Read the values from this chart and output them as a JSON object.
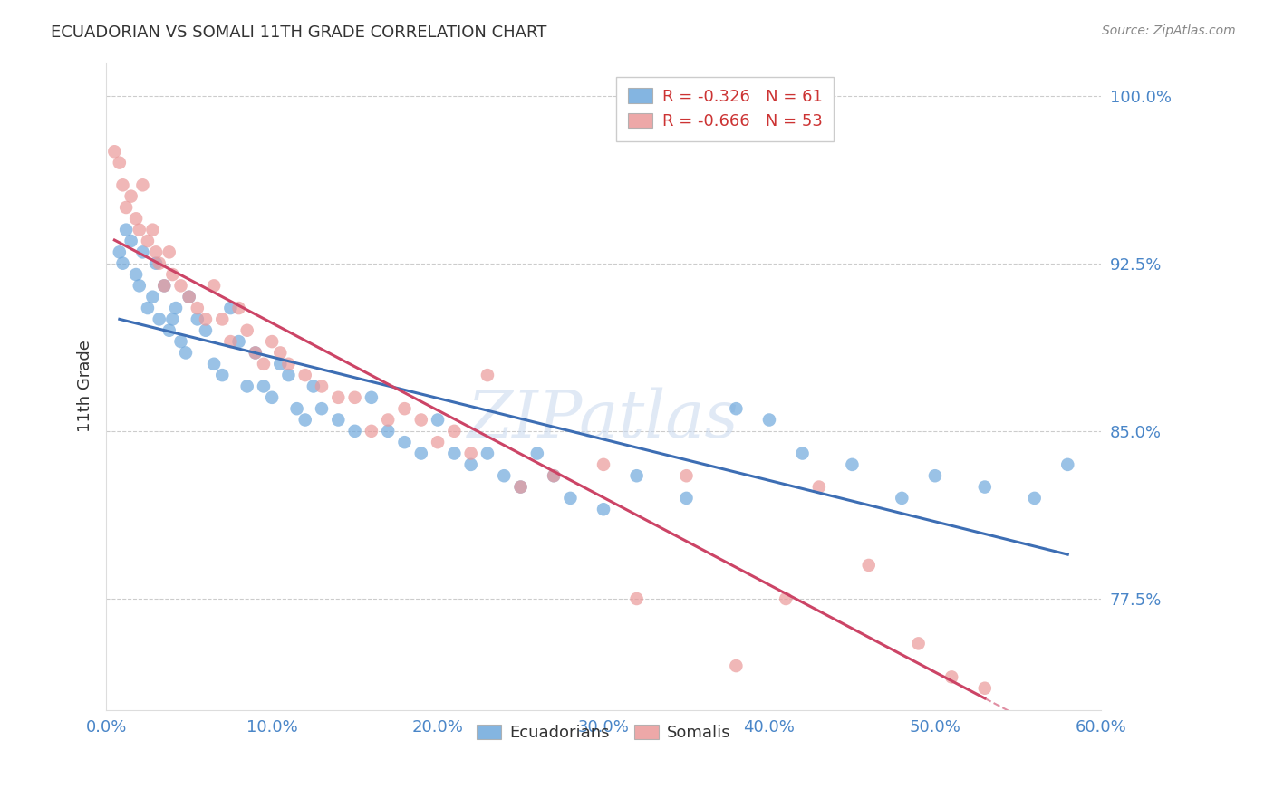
{
  "title": "ECUADORIAN VS SOMALI 11TH GRADE CORRELATION CHART",
  "source": "Source: ZipAtlas.com",
  "ylabel": "11th Grade",
  "xlim": [
    0.0,
    60.0
  ],
  "ylim": [
    72.5,
    101.5
  ],
  "yticks": [
    77.5,
    85.0,
    92.5,
    100.0
  ],
  "ytick_labels": [
    "77.5%",
    "85.0%",
    "92.5%",
    "100.0%"
  ],
  "xticks": [
    0.0,
    10.0,
    20.0,
    30.0,
    40.0,
    50.0,
    60.0
  ],
  "xtick_labels": [
    "0.0%",
    "10.0%",
    "20.0%",
    "30.0%",
    "40.0%",
    "50.0%",
    "60.0%"
  ],
  "legend_R_blue": "R = -0.326",
  "legend_N_blue": "N = 61",
  "legend_R_pink": "R = -0.666",
  "legend_N_pink": "N = 53",
  "blue_color": "#6fa8dc",
  "pink_color": "#ea9999",
  "blue_line_color": "#3d6eb4",
  "pink_line_color": "#cc4466",
  "axis_color": "#4a86c8",
  "background_color": "#ffffff",
  "grid_color": "#cccccc",
  "title_color": "#333333",
  "source_color": "#888888",
  "watermark_color": "#c8d8ee",
  "blue_dots_x": [
    0.8,
    1.0,
    1.2,
    1.5,
    1.8,
    2.0,
    2.2,
    2.5,
    2.8,
    3.0,
    3.2,
    3.5,
    3.8,
    4.0,
    4.2,
    4.5,
    4.8,
    5.0,
    5.5,
    6.0,
    6.5,
    7.0,
    7.5,
    8.0,
    8.5,
    9.0,
    9.5,
    10.0,
    10.5,
    11.0,
    11.5,
    12.0,
    12.5,
    13.0,
    14.0,
    15.0,
    16.0,
    17.0,
    18.0,
    19.0,
    20.0,
    21.0,
    22.0,
    23.0,
    24.0,
    25.0,
    26.0,
    27.0,
    28.0,
    30.0,
    32.0,
    35.0,
    38.0,
    40.0,
    42.0,
    45.0,
    48.0,
    50.0,
    53.0,
    56.0,
    58.0
  ],
  "blue_dots_y": [
    93.0,
    92.5,
    94.0,
    93.5,
    92.0,
    91.5,
    93.0,
    90.5,
    91.0,
    92.5,
    90.0,
    91.5,
    89.5,
    90.0,
    90.5,
    89.0,
    88.5,
    91.0,
    90.0,
    89.5,
    88.0,
    87.5,
    90.5,
    89.0,
    87.0,
    88.5,
    87.0,
    86.5,
    88.0,
    87.5,
    86.0,
    85.5,
    87.0,
    86.0,
    85.5,
    85.0,
    86.5,
    85.0,
    84.5,
    84.0,
    85.5,
    84.0,
    83.5,
    84.0,
    83.0,
    82.5,
    84.0,
    83.0,
    82.0,
    81.5,
    83.0,
    82.0,
    86.0,
    85.5,
    84.0,
    83.5,
    82.0,
    83.0,
    82.5,
    82.0,
    83.5
  ],
  "pink_dots_x": [
    0.5,
    0.8,
    1.0,
    1.2,
    1.5,
    1.8,
    2.0,
    2.2,
    2.5,
    2.8,
    3.0,
    3.2,
    3.5,
    3.8,
    4.0,
    4.5,
    5.0,
    5.5,
    6.0,
    6.5,
    7.0,
    7.5,
    8.0,
    8.5,
    9.0,
    9.5,
    10.0,
    10.5,
    11.0,
    12.0,
    13.0,
    14.0,
    15.0,
    16.0,
    17.0,
    18.0,
    19.0,
    20.0,
    21.0,
    22.0,
    23.0,
    25.0,
    27.0,
    30.0,
    32.0,
    35.0,
    38.0,
    41.0,
    43.0,
    46.0,
    49.0,
    51.0,
    53.0
  ],
  "pink_dots_y": [
    97.5,
    97.0,
    96.0,
    95.0,
    95.5,
    94.5,
    94.0,
    96.0,
    93.5,
    94.0,
    93.0,
    92.5,
    91.5,
    93.0,
    92.0,
    91.5,
    91.0,
    90.5,
    90.0,
    91.5,
    90.0,
    89.0,
    90.5,
    89.5,
    88.5,
    88.0,
    89.0,
    88.5,
    88.0,
    87.5,
    87.0,
    86.5,
    86.5,
    85.0,
    85.5,
    86.0,
    85.5,
    84.5,
    85.0,
    84.0,
    87.5,
    82.5,
    83.0,
    83.5,
    77.5,
    83.0,
    74.5,
    77.5,
    82.5,
    79.0,
    75.5,
    74.0,
    73.5
  ]
}
